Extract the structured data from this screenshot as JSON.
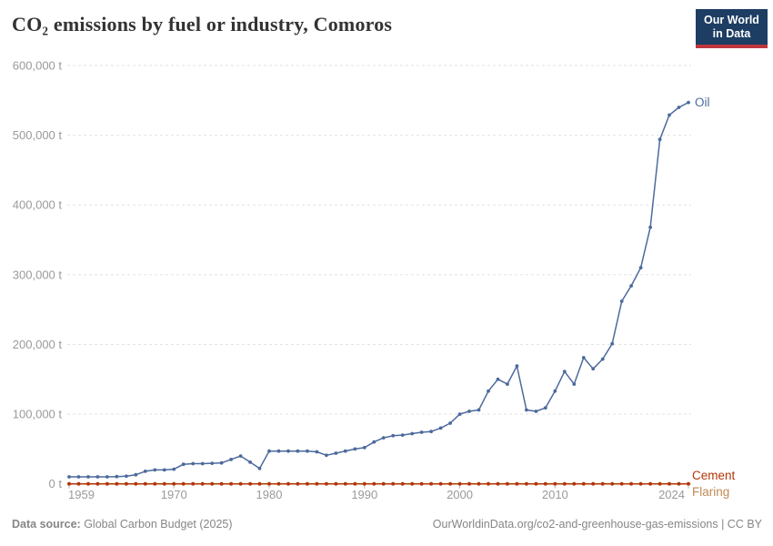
{
  "header": {
    "title": "CO₂ emissions by fuel or industry, Comoros",
    "logo": {
      "line1": "Our World",
      "line2": "in Data",
      "bg_color": "#1d3d63",
      "accent_color": "#c0353e"
    }
  },
  "chart_data": {
    "type": "line",
    "title": "CO₂ emissions by fuel or industry, Comoros",
    "xlabel": "",
    "ylabel": "",
    "unit": "t",
    "xlim": [
      1959,
      2024
    ],
    "ylim": [
      0,
      600000
    ],
    "grid": "horizontal-dashed",
    "legend_position": "end-of-line-labels",
    "x": [
      1959,
      1960,
      1961,
      1962,
      1963,
      1964,
      1965,
      1966,
      1967,
      1968,
      1969,
      1970,
      1971,
      1972,
      1973,
      1974,
      1975,
      1976,
      1977,
      1978,
      1979,
      1980,
      1981,
      1982,
      1983,
      1984,
      1985,
      1986,
      1987,
      1988,
      1989,
      1990,
      1991,
      1992,
      1993,
      1994,
      1995,
      1996,
      1997,
      1998,
      1999,
      2000,
      2001,
      2002,
      2003,
      2004,
      2005,
      2006,
      2007,
      2008,
      2009,
      2010,
      2011,
      2012,
      2013,
      2014,
      2015,
      2016,
      2017,
      2018,
      2019,
      2020,
      2021,
      2022,
      2023,
      2024
    ],
    "x_ticks": [
      {
        "value": 1959,
        "label": "1959"
      },
      {
        "value": 1970,
        "label": "1970"
      },
      {
        "value": 1980,
        "label": "1980"
      },
      {
        "value": 1990,
        "label": "1990"
      },
      {
        "value": 2000,
        "label": "2000"
      },
      {
        "value": 2010,
        "label": "2010"
      },
      {
        "value": 2024,
        "label": "2024"
      }
    ],
    "y_ticks": [
      {
        "value": 0,
        "label": "0 t"
      },
      {
        "value": 100000,
        "label": "100,000 t"
      },
      {
        "value": 200000,
        "label": "200,000 t"
      },
      {
        "value": 300000,
        "label": "300,000 t"
      },
      {
        "value": 400000,
        "label": "400,000 t"
      },
      {
        "value": 500000,
        "label": "500,000 t"
      },
      {
        "value": 600000,
        "label": "600,000 t"
      }
    ],
    "series": [
      {
        "name": "Oil",
        "color": "#4c6a9c",
        "values": [
          10000,
          10000,
          10000,
          10000,
          10000,
          10500,
          11000,
          13000,
          18000,
          20000,
          20000,
          21000,
          28000,
          29000,
          29000,
          29500,
          30000,
          35000,
          40000,
          31000,
          22000,
          47000,
          47000,
          47000,
          47000,
          47000,
          46000,
          41000,
          44000,
          47000,
          50000,
          52000,
          60000,
          66000,
          69000,
          70000,
          72000,
          74000,
          75000,
          80000,
          87000,
          100000,
          104000,
          106000,
          133000,
          150000,
          143000,
          169000,
          106000,
          104000,
          109000,
          133000,
          161000,
          143000,
          181000,
          165000,
          179000,
          201000,
          262000,
          284000,
          310000,
          368000,
          494000,
          529000,
          540000,
          547000
        ]
      },
      {
        "name": "Cement",
        "color": "#b13507",
        "values": [
          0,
          0,
          0,
          0,
          0,
          0,
          0,
          0,
          0,
          0,
          0,
          0,
          0,
          0,
          0,
          0,
          0,
          0,
          0,
          0,
          0,
          0,
          0,
          0,
          0,
          0,
          0,
          0,
          0,
          0,
          0,
          0,
          0,
          0,
          0,
          0,
          0,
          0,
          0,
          0,
          0,
          0,
          0,
          0,
          0,
          0,
          0,
          0,
          0,
          0,
          0,
          0,
          0,
          0,
          0,
          0,
          0,
          0,
          0,
          0,
          0,
          0,
          0,
          0,
          0,
          0
        ]
      },
      {
        "name": "Flaring",
        "color": "#bf8b54",
        "values": [
          0,
          0,
          0,
          0,
          0,
          0,
          0,
          0,
          0,
          0,
          0,
          0,
          0,
          0,
          0,
          0,
          0,
          0,
          0,
          0,
          0,
          0,
          0,
          0,
          0,
          0,
          0,
          0,
          0,
          0,
          0,
          0,
          0,
          0,
          0,
          0,
          0,
          0,
          0,
          0,
          0,
          0,
          0,
          0,
          0,
          0,
          0,
          0,
          0,
          0,
          0,
          0,
          0,
          0,
          0,
          0,
          0,
          0,
          0,
          0,
          0,
          0,
          0,
          0,
          0,
          0
        ]
      }
    ]
  },
  "footer": {
    "datasource_label": "Data source:",
    "datasource_text": " Global Carbon Budget (2025)",
    "attribution": "OurWorldinData.org/co2-and-greenhouse-gas-emissions | CC BY"
  }
}
